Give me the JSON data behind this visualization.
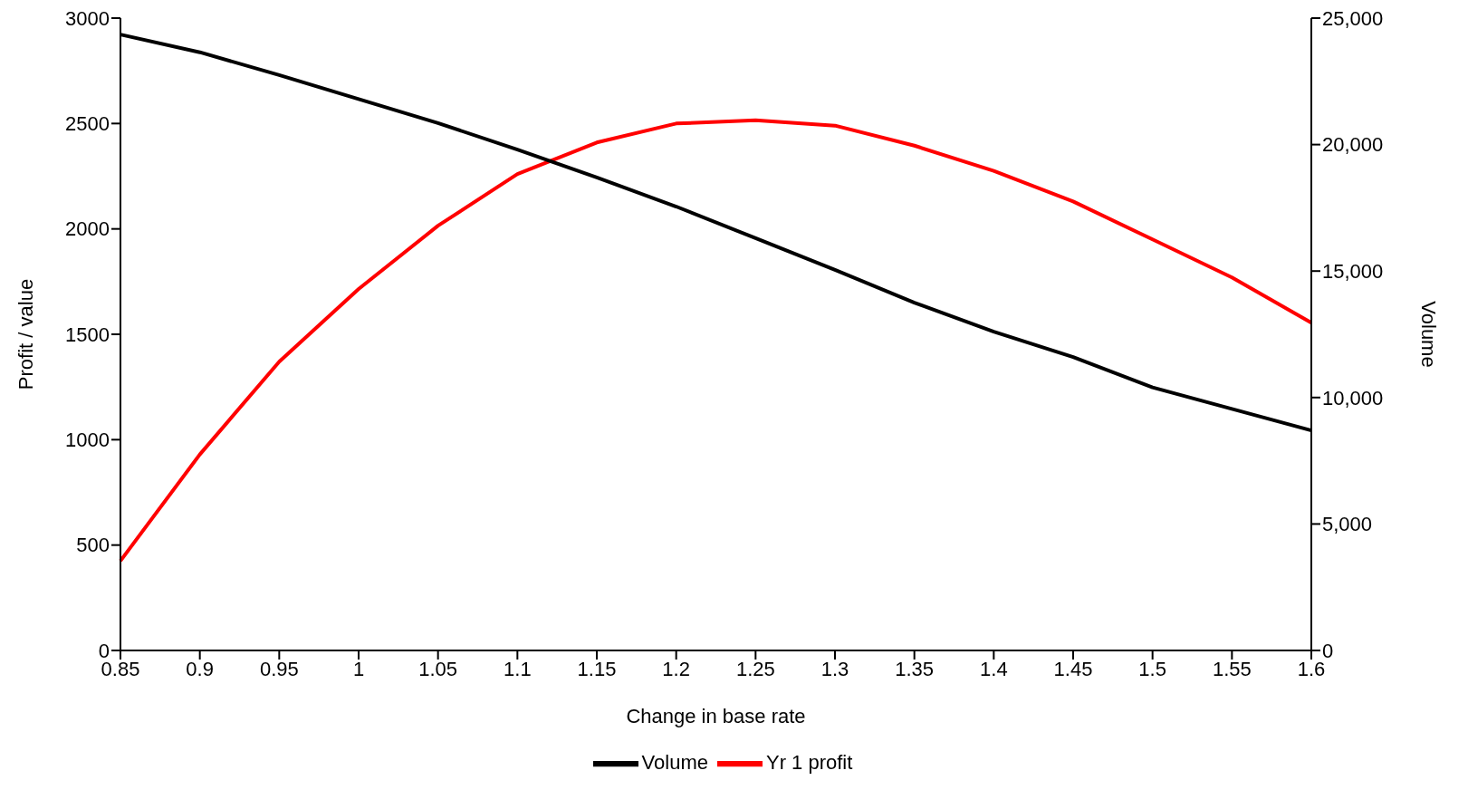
{
  "chart_data": {
    "type": "line",
    "xlabel": "Change in base rate",
    "ylabel": "Profit / value",
    "y2label": "Volume",
    "categories": [
      "0.85",
      "0.9",
      "0.95",
      "1",
      "1.05",
      "1.1",
      "1.15",
      "1.2",
      "1.25",
      "1.3",
      "1.35",
      "1.4",
      "1.45",
      "1.5",
      "1.55",
      "1.6"
    ],
    "series": [
      {
        "name": "Yr 1 profit",
        "color": "#ff0000",
        "values": [
          425,
          930,
          1370,
          1715,
          2015,
          2260,
          2410,
          2500,
          2515,
          2490,
          2395,
          2275,
          2130,
          1950,
          1770,
          1555
        ]
      },
      {
        "name": "Volume",
        "color": "#000000",
        "axis": "y2",
        "values": [
          24350,
          23650,
          22750,
          21800,
          20850,
          19800,
          18700,
          17550,
          16300,
          15050,
          13750,
          12600,
          11600,
          10400,
          9550,
          8700
        ]
      }
    ],
    "ylim": [
      0,
      3000
    ],
    "yticks": [
      0,
      500,
      1000,
      1500,
      2000,
      2500,
      3000
    ],
    "y2lim": [
      0,
      25000
    ],
    "y2ticks": [
      0,
      {
        "value": 5000,
        "label": "5,000"
      },
      {
        "value": 10000,
        "label": "10,000"
      },
      {
        "value": 15000,
        "label": "15,000"
      },
      {
        "value": 20000,
        "label": "20,000"
      },
      {
        "value": 25000,
        "label": "25,000"
      }
    ],
    "grid": false,
    "legend": "bottom",
    "marker": "none",
    "line_style": "solid"
  }
}
